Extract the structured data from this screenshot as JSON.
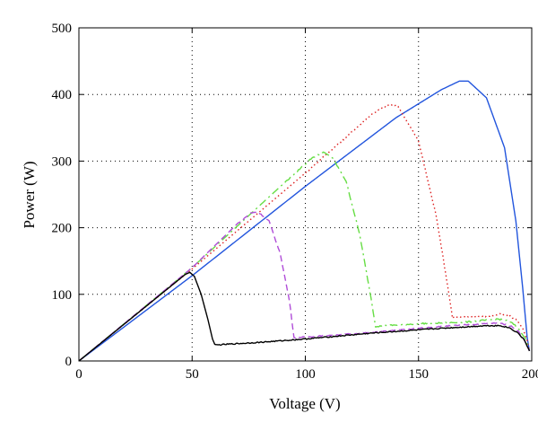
{
  "chart_data": {
    "type": "line",
    "xlabel": "Voltage (V)",
    "ylabel": "Power (W)",
    "xlim": [
      0,
      200
    ],
    "ylim": [
      0,
      500
    ],
    "xticks": [
      0,
      50,
      100,
      150,
      200
    ],
    "yticks": [
      0,
      100,
      200,
      300,
      400,
      500
    ],
    "grid": true,
    "series": [
      {
        "color": "#2255dd",
        "dash": "solid",
        "x": [
          0,
          50,
          100,
          140,
          160,
          168,
          172,
          180,
          188,
          193,
          196,
          198,
          199
        ],
        "y": [
          0,
          128,
          262,
          365,
          407,
          420,
          420,
          395,
          320,
          210,
          110,
          35,
          15
        ]
      },
      {
        "color": "#dd2222",
        "dash": "dotted",
        "x": [
          0,
          50,
          100,
          130,
          137,
          141,
          150,
          158,
          163,
          165,
          170,
          180,
          186,
          190,
          193,
          196,
          198,
          199
        ],
        "y": [
          0,
          138,
          282,
          372,
          385,
          382,
          330,
          215,
          110,
          65,
          66,
          67,
          70,
          68,
          62,
          50,
          30,
          15
        ],
        "noise": 1.2
      },
      {
        "color": "#66dd44",
        "dash": "dashdot",
        "x": [
          0,
          50,
          90,
          103,
          108,
          112,
          118,
          124,
          129,
          131,
          150,
          170,
          185,
          190,
          194,
          197,
          199
        ],
        "y": [
          0,
          140,
          265,
          305,
          313,
          305,
          270,
          190,
          95,
          52,
          56,
          58,
          63,
          60,
          50,
          35,
          15
        ],
        "noise": 1
      },
      {
        "color": "#b04dd8",
        "dash": "dashed",
        "x": [
          0,
          50,
          70,
          76,
          79,
          84,
          89,
          93,
          95,
          100,
          130,
          160,
          180,
          186,
          191,
          194,
          197,
          199
        ],
        "y": [
          0,
          140,
          206,
          222,
          224,
          210,
          160,
          90,
          35,
          36,
          43,
          52,
          56,
          57,
          52,
          45,
          30,
          15
        ],
        "noise": 0.8
      },
      {
        "color": "#000000",
        "dash": "solid",
        "x": [
          0,
          47,
          49,
          51,
          54,
          57,
          59,
          60,
          61,
          65,
          80,
          100,
          130,
          160,
          180,
          186,
          190,
          194,
          197,
          199
        ],
        "y": [
          0,
          130,
          133,
          127,
          100,
          62,
          33,
          25,
          24,
          25,
          28,
          33,
          42,
          49,
          53,
          53,
          50,
          42,
          30,
          15
        ],
        "noise": 0.8
      }
    ]
  }
}
